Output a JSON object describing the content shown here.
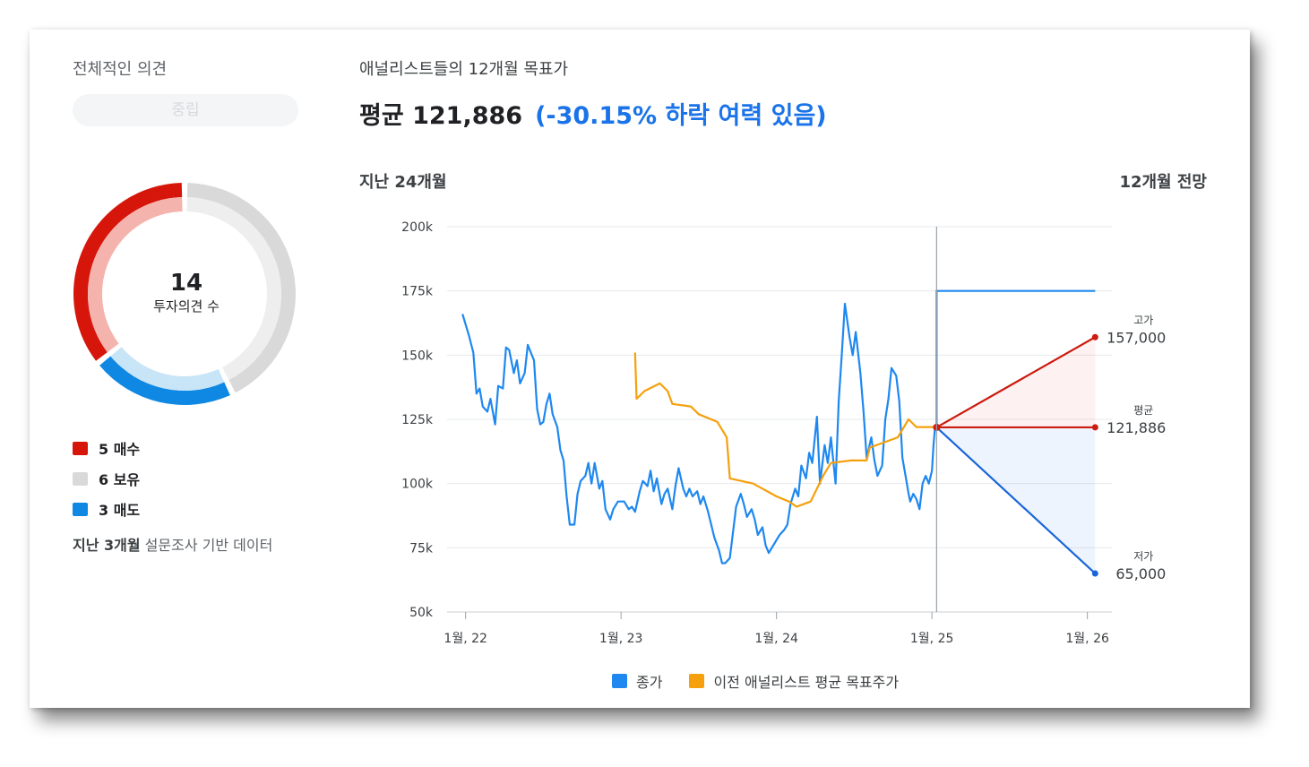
{
  "colors": {
    "buy": "#d7160b",
    "buy_light": "#f5b3ae",
    "hold": "#d9d9d9",
    "hold_light": "#eeeeee",
    "sell": "#0f88e3",
    "sell_light": "#c8e4f7",
    "close": "#1e88f0",
    "prev_target": "#f5a00c",
    "forecast_high": "#cc1b0f",
    "forecast_low": "#1a66d9"
  },
  "rating": {
    "title": "전체적인 의견",
    "consensus": "중립",
    "count": "14",
    "count_label": "투자의견 수",
    "items": [
      {
        "label": "5 매수",
        "value": 5,
        "key": "buy"
      },
      {
        "label": "6 보유",
        "value": 6,
        "key": "hold"
      },
      {
        "label": "3 매도",
        "value": 3,
        "key": "sell"
      }
    ],
    "note_bold": "지난 3개월",
    "note_rest": " 설문조사 기반 데이터"
  },
  "target": {
    "title": "애널리스트들의 12개월 목표가",
    "avg_prefix": "평균 121,886",
    "avg_change": "(-30.15% 하락 여력 있음)",
    "past_label": "지난 24개월",
    "forecast_label": "12개월 전망"
  },
  "chart_data": {
    "type": "line",
    "ylim": [
      50000,
      200000
    ],
    "yticks": [
      50000,
      75000,
      100000,
      125000,
      150000,
      175000,
      200000
    ],
    "ytick_labels": [
      "50k",
      "75k",
      "100k",
      "125k",
      "150k",
      "175k",
      "200k"
    ],
    "xticks": [
      2022.0,
      2023.0,
      2024.0,
      2025.0,
      2026.0
    ],
    "xtick_labels": [
      "1월, 22",
      "1월, 23",
      "1월, 24",
      "1월, 25",
      "1월, 26"
    ],
    "xlim": [
      2021.95,
      2026.1
    ],
    "divider_x": 2025.03,
    "series": [
      {
        "name": "종가",
        "color_key": "close",
        "points": [
          [
            2021.98,
            166000
          ],
          [
            2022.02,
            158000
          ],
          [
            2022.05,
            151000
          ],
          [
            2022.07,
            135000
          ],
          [
            2022.09,
            137000
          ],
          [
            2022.11,
            130000
          ],
          [
            2022.14,
            128000
          ],
          [
            2022.16,
            133000
          ],
          [
            2022.19,
            123000
          ],
          [
            2022.21,
            138000
          ],
          [
            2022.24,
            137000
          ],
          [
            2022.26,
            153000
          ],
          [
            2022.28,
            152000
          ],
          [
            2022.31,
            143000
          ],
          [
            2022.33,
            148000
          ],
          [
            2022.35,
            139000
          ],
          [
            2022.38,
            143000
          ],
          [
            2022.4,
            154000
          ],
          [
            2022.42,
            151000
          ],
          [
            2022.44,
            148000
          ],
          [
            2022.46,
            129000
          ],
          [
            2022.48,
            123000
          ],
          [
            2022.5,
            124000
          ],
          [
            2022.52,
            131000
          ],
          [
            2022.54,
            135000
          ],
          [
            2022.56,
            127000
          ],
          [
            2022.59,
            122000
          ],
          [
            2022.61,
            113000
          ],
          [
            2022.63,
            109000
          ],
          [
            2022.65,
            95000
          ],
          [
            2022.67,
            84000
          ],
          [
            2022.7,
            84000
          ],
          [
            2022.72,
            96000
          ],
          [
            2022.74,
            101000
          ],
          [
            2022.77,
            103000
          ],
          [
            2022.79,
            108000
          ],
          [
            2022.81,
            100000
          ],
          [
            2022.83,
            108000
          ],
          [
            2022.86,
            98000
          ],
          [
            2022.88,
            101000
          ],
          [
            2022.9,
            90000
          ],
          [
            2022.93,
            86000
          ],
          [
            2022.95,
            90000
          ],
          [
            2022.98,
            93000
          ],
          [
            2023.02,
            93000
          ],
          [
            2023.05,
            90000
          ],
          [
            2023.07,
            91000
          ],
          [
            2023.09,
            89000
          ],
          [
            2023.12,
            97000
          ],
          [
            2023.14,
            101000
          ],
          [
            2023.17,
            99000
          ],
          [
            2023.19,
            105000
          ],
          [
            2023.21,
            97000
          ],
          [
            2023.23,
            102000
          ],
          [
            2023.26,
            92000
          ],
          [
            2023.28,
            96000
          ],
          [
            2023.3,
            98000
          ],
          [
            2023.33,
            90000
          ],
          [
            2023.35,
            99000
          ],
          [
            2023.37,
            106000
          ],
          [
            2023.4,
            98000
          ],
          [
            2023.42,
            95000
          ],
          [
            2023.44,
            98000
          ],
          [
            2023.46,
            95000
          ],
          [
            2023.49,
            97000
          ],
          [
            2023.51,
            92000
          ],
          [
            2023.53,
            95000
          ],
          [
            2023.56,
            89000
          ],
          [
            2023.58,
            84000
          ],
          [
            2023.6,
            79000
          ],
          [
            2023.63,
            74000
          ],
          [
            2023.65,
            69000
          ],
          [
            2023.67,
            69000
          ],
          [
            2023.7,
            71000
          ],
          [
            2023.72,
            81000
          ],
          [
            2023.74,
            91000
          ],
          [
            2023.77,
            96000
          ],
          [
            2023.79,
            92000
          ],
          [
            2023.81,
            87000
          ],
          [
            2023.84,
            90000
          ],
          [
            2023.86,
            86000
          ],
          [
            2023.88,
            80000
          ],
          [
            2023.91,
            83000
          ],
          [
            2023.93,
            76000
          ],
          [
            2023.95,
            73000
          ],
          [
            2023.98,
            76000
          ],
          [
            2024.02,
            80000
          ],
          [
            2024.05,
            82000
          ],
          [
            2024.07,
            84000
          ],
          [
            2024.09,
            92000
          ],
          [
            2024.12,
            98000
          ],
          [
            2024.14,
            95000
          ],
          [
            2024.16,
            107000
          ],
          [
            2024.19,
            102000
          ],
          [
            2024.21,
            112000
          ],
          [
            2024.23,
            108000
          ],
          [
            2024.26,
            126000
          ],
          [
            2024.28,
            100000
          ],
          [
            2024.31,
            115000
          ],
          [
            2024.33,
            108000
          ],
          [
            2024.35,
            118000
          ],
          [
            2024.38,
            100000
          ],
          [
            2024.4,
            132000
          ],
          [
            2024.42,
            150000
          ],
          [
            2024.44,
            170000
          ],
          [
            2024.47,
            157000
          ],
          [
            2024.49,
            150000
          ],
          [
            2024.51,
            159000
          ],
          [
            2024.54,
            143000
          ],
          [
            2024.56,
            128000
          ],
          [
            2024.58,
            110000
          ],
          [
            2024.61,
            118000
          ],
          [
            2024.63,
            109000
          ],
          [
            2024.65,
            103000
          ],
          [
            2024.68,
            107000
          ],
          [
            2024.7,
            125000
          ],
          [
            2024.72,
            133000
          ],
          [
            2024.74,
            145000
          ],
          [
            2024.77,
            142000
          ],
          [
            2024.79,
            132000
          ],
          [
            2024.81,
            110000
          ],
          [
            2024.83,
            103000
          ],
          [
            2024.85,
            96000
          ],
          [
            2024.86,
            93000
          ],
          [
            2024.88,
            96000
          ],
          [
            2024.9,
            94000
          ],
          [
            2024.92,
            90000
          ],
          [
            2024.94,
            100000
          ],
          [
            2024.96,
            103000
          ],
          [
            2024.98,
            100000
          ],
          [
            2025.0,
            105000
          ],
          [
            2025.01,
            115000
          ],
          [
            2025.02,
            122000
          ]
        ]
      },
      {
        "name": "이전 애널리스트 평균 목표주가",
        "color_key": "prev_target",
        "points": [
          [
            2023.09,
            151000
          ],
          [
            2023.1,
            133000
          ],
          [
            2023.15,
            136000
          ],
          [
            2023.25,
            139000
          ],
          [
            2023.3,
            136000
          ],
          [
            2023.33,
            131000
          ],
          [
            2023.45,
            130000
          ],
          [
            2023.5,
            127000
          ],
          [
            2023.62,
            124000
          ],
          [
            2023.68,
            118000
          ],
          [
            2023.7,
            102000
          ],
          [
            2023.85,
            100000
          ],
          [
            2024.0,
            95000
          ],
          [
            2024.08,
            93000
          ],
          [
            2024.13,
            91000
          ],
          [
            2024.22,
            93000
          ],
          [
            2024.3,
            103000
          ],
          [
            2024.35,
            108000
          ],
          [
            2024.48,
            109000
          ],
          [
            2024.58,
            109000
          ],
          [
            2024.6,
            114000
          ],
          [
            2024.78,
            118000
          ],
          [
            2024.85,
            125000
          ],
          [
            2024.9,
            122000
          ],
          [
            2025.02,
            122000
          ]
        ]
      }
    ],
    "forecast": {
      "start": [
        2025.03,
        121886
      ],
      "end_x": 2026.05,
      "flat_top": 175000,
      "high": {
        "value": 157000,
        "label": "고가",
        "value_label": "157,000"
      },
      "average": {
        "value": 121886,
        "label": "평균",
        "value_label": "121,886"
      },
      "low": {
        "value": 65000,
        "label": "저가",
        "value_label": "65,000"
      }
    }
  },
  "legend_bottom": [
    {
      "label": "종가",
      "color_key": "close"
    },
    {
      "label": "이전 애널리스트 평균 목표주가",
      "color_key": "prev_target"
    }
  ]
}
